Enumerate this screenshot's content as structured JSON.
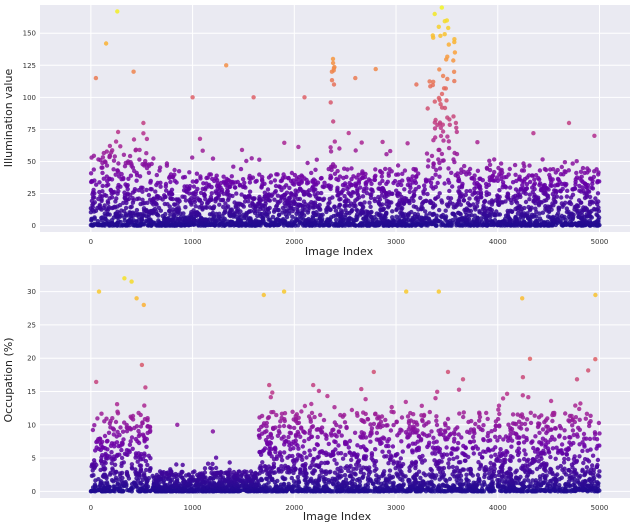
{
  "chart_data": [
    {
      "type": "scatter",
      "title": "",
      "xlabel": "Image Index",
      "ylabel": "Illumination value",
      "xlim": [
        -500,
        5300
      ],
      "ylim": [
        -5,
        172
      ],
      "xticks": [
        0,
        1000,
        2000,
        3000,
        4000,
        5000
      ],
      "yticks": [
        0,
        25,
        50,
        75,
        100,
        125,
        150,
        175
      ],
      "ytick_labels": [
        "0",
        "25",
        "50",
        "75",
        "100",
        "125",
        "150",
        "175"
      ],
      "grid": true,
      "colormap": [
        "#1f0c8f",
        "#6a00a8",
        "#b12a90",
        "#e16462",
        "#fca636",
        "#f0f921"
      ],
      "color_by": "y",
      "point_count": 3000,
      "segments": [
        {
          "x": [
            0,
            580
          ],
          "typical_max": 60,
          "peak_points": [
            [
              50,
              115
            ],
            [
              150,
              142
            ],
            [
              260,
              167
            ],
            [
              420,
              120
            ]
          ]
        },
        {
          "x": [
            580,
            2350
          ],
          "typical_max": 40,
          "peak_points": [
            [
              1000,
              100
            ],
            [
              1330,
              125
            ],
            [
              1600,
              100
            ],
            [
              2100,
              100
            ]
          ]
        },
        {
          "x": [
            2350,
            2400
          ],
          "typical_max": 130,
          "peak_points": [
            [
              2380,
              130
            ],
            [
              2370,
              120
            ],
            [
              2390,
              110
            ]
          ]
        },
        {
          "x": [
            2400,
            3300
          ],
          "typical_max": 45,
          "peak_points": [
            [
              2600,
              115
            ],
            [
              2800,
              122
            ],
            [
              3200,
              110
            ]
          ]
        },
        {
          "x": [
            3300,
            3600
          ],
          "typical_max": 150,
          "peak_points": [
            [
              3380,
              165
            ],
            [
              3450,
              170
            ],
            [
              3500,
              160
            ],
            [
              3420,
              155
            ]
          ]
        },
        {
          "x": [
            3600,
            5000
          ],
          "typical_max": 45,
          "peak_points": [
            [
              3800,
              65
            ],
            [
              4350,
              72
            ],
            [
              4700,
              80
            ],
            [
              4950,
              70
            ]
          ]
        }
      ]
    },
    {
      "type": "scatter",
      "title": "",
      "xlabel": "Image Index",
      "ylabel": "Occupation (%)",
      "xlim": [
        -500,
        5300
      ],
      "ylim": [
        -1,
        34
      ],
      "xticks": [
        0,
        1000,
        2000,
        3000,
        4000,
        5000
      ],
      "yticks": [
        0,
        5,
        10,
        15,
        20,
        25,
        30
      ],
      "ytick_labels": [
        "0",
        "5",
        "10",
        "15",
        "20",
        "25",
        "30"
      ],
      "grid": true,
      "colormap": [
        "#1f0c8f",
        "#6a00a8",
        "#b12a90",
        "#e16462",
        "#fca636",
        "#f0f921"
      ],
      "color_by": "y",
      "point_count": 3000,
      "segments": [
        {
          "x": [
            0,
            600
          ],
          "typical_max": 12,
          "peak_points": [
            [
              80,
              30
            ],
            [
              330,
              32
            ],
            [
              400,
              31.5
            ],
            [
              450,
              29
            ],
            [
              520,
              28
            ]
          ]
        },
        {
          "x": [
            600,
            1650
          ],
          "typical_max": 3,
          "peak_points": [
            [
              850,
              10
            ],
            [
              1200,
              9
            ]
          ]
        },
        {
          "x": [
            1650,
            5000
          ],
          "typical_max": 12,
          "peak_points": [
            [
              1700,
              29.5
            ],
            [
              1900,
              30
            ],
            [
              3100,
              30
            ],
            [
              3420,
              30
            ],
            [
              4240,
              29
            ],
            [
              4960,
              29.5
            ]
          ]
        }
      ]
    }
  ]
}
